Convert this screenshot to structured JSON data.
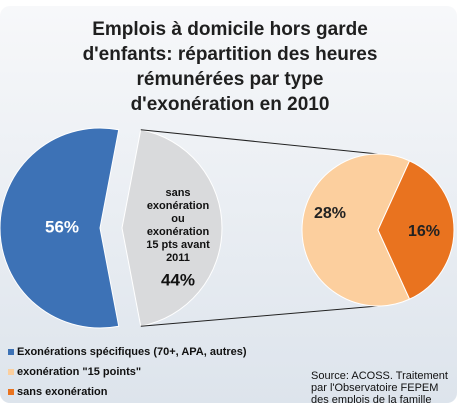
{
  "chart_data": {
    "type": "pie_of_pie",
    "title": [
      "Emplois à domicile hors garde",
      "d'enfants: répartition des heures",
      "rémunérées par type",
      "d'exonération en 2010"
    ],
    "pie": {
      "values": [
        56,
        44
      ],
      "value_labels": [
        "56%",
        "44%"
      ],
      "colors": [
        "#3d72b6",
        "#d9dadc"
      ],
      "other_label": [
        "sans",
        "exonération",
        "ou",
        "exonération",
        "15 pts avant",
        "2011"
      ]
    },
    "subpie": {
      "values": [
        28,
        16
      ],
      "value_labels": [
        "28%",
        "16%"
      ],
      "colors": [
        "#fccf9e",
        "#e9731f"
      ]
    },
    "legend": [
      "Exonérations spécifiques (70+, APA, autres)",
      "exonération \"15 points\"",
      "sans exonération"
    ],
    "legend_position": "bottom-left",
    "source": [
      "Source: ACOSS. Traitement",
      "par l'Observatoire FEPEM",
      "des emplois de la famille"
    ]
  }
}
